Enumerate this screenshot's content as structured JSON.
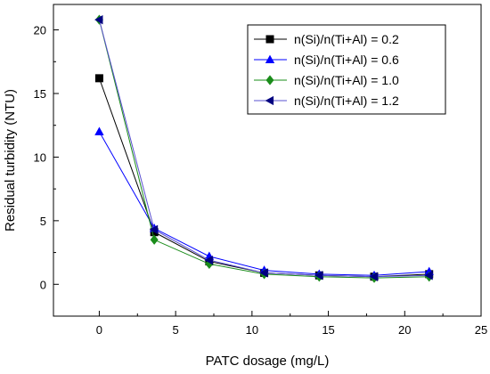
{
  "chart_data": {
    "type": "line",
    "title": "",
    "xlabel": "PATC dosage (mg/L)",
    "ylabel": "Residual turbidity (NTU)",
    "xlim": [
      -3,
      25
    ],
    "ylim": [
      -2.5,
      22
    ],
    "xticks": [
      0,
      5,
      10,
      15,
      20,
      25
    ],
    "yticks": [
      0,
      5,
      10,
      15,
      20
    ],
    "grid": false,
    "legend_position": "top-right",
    "x": [
      0,
      3.6,
      7.2,
      10.8,
      14.4,
      18,
      21.6
    ],
    "series": [
      {
        "name": "n(Si)/n(Ti+Al) = 0.2",
        "marker": "square",
        "color": "#000000",
        "line_color": "#000000",
        "values": [
          16.2,
          4.1,
          1.8,
          0.9,
          0.7,
          0.6,
          0.8
        ]
      },
      {
        "name": "n(Si)/n(Ti+Al) = 0.6",
        "marker": "triangle-up",
        "color": "#0000ff",
        "line_color": "#0000ff",
        "values": [
          12.0,
          4.4,
          2.2,
          1.1,
          0.8,
          0.7,
          1.0
        ]
      },
      {
        "name": "n(Si)/n(Ti+Al) = 1.0",
        "marker": "diamond",
        "color": "#1a8c1a",
        "line_color": "#1a8c1a",
        "values": [
          20.8,
          3.5,
          1.6,
          0.8,
          0.6,
          0.5,
          0.6
        ]
      },
      {
        "name": "n(Si)/n(Ti+Al) = 1.2",
        "marker": "triangle-left",
        "color": "#000080",
        "line_color": "#5a50d0",
        "values": [
          20.8,
          4.3,
          1.9,
          0.9,
          0.7,
          0.6,
          0.7
        ]
      }
    ]
  }
}
